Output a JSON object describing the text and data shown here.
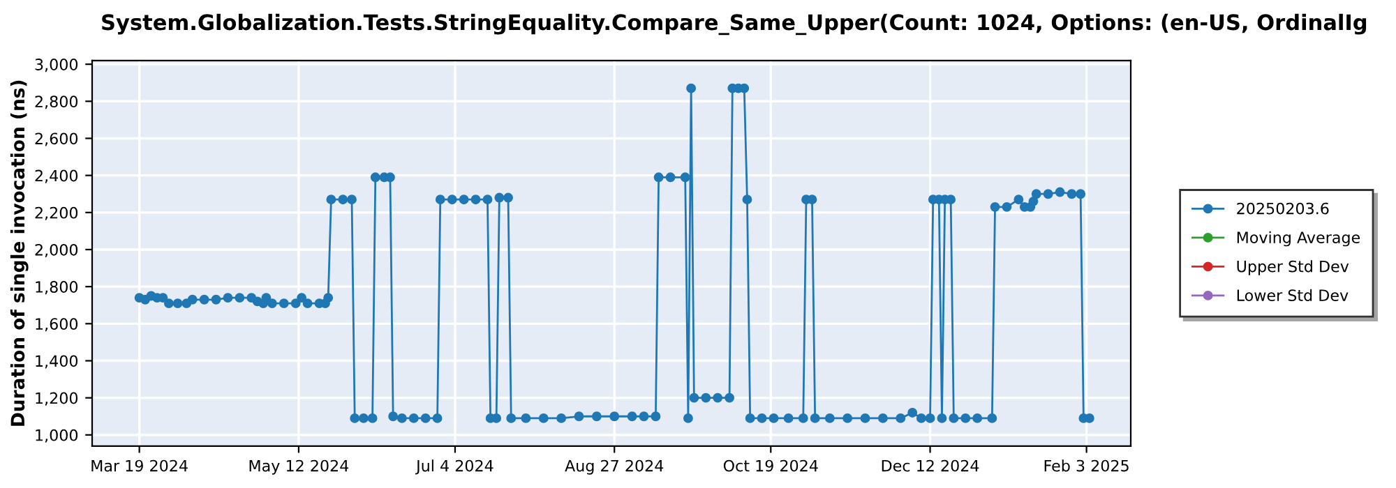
{
  "chart_data": {
    "type": "line",
    "title": "System.Globalization.Tests.StringEquality.Compare_Same_Upper(Count: 1024, Options: (en-US, OrdinalIg",
    "ylabel": "Duration of single invocation (ns)",
    "xlim": [
      "2024-03-03",
      "2025-02-18"
    ],
    "ylim": [
      940,
      3020
    ],
    "xticks": [
      {
        "value": "2024-03-19",
        "label": "Mar 19 2024"
      },
      {
        "value": "2024-05-12",
        "label": "May 12 2024"
      },
      {
        "value": "2024-07-04",
        "label": "Jul 4 2024"
      },
      {
        "value": "2024-08-27",
        "label": "Aug 27 2024"
      },
      {
        "value": "2024-10-19",
        "label": "Oct 19 2024"
      },
      {
        "value": "2024-12-12",
        "label": "Dec 12 2024"
      },
      {
        "value": "2025-02-03",
        "label": "Feb 3 2025"
      }
    ],
    "yticks": [
      {
        "value": 1000,
        "label": "1,000"
      },
      {
        "value": 1200,
        "label": "1,200"
      },
      {
        "value": 1400,
        "label": "1,400"
      },
      {
        "value": 1600,
        "label": "1,600"
      },
      {
        "value": 1800,
        "label": "1,800"
      },
      {
        "value": 2000,
        "label": "2,000"
      },
      {
        "value": 2200,
        "label": "2,200"
      },
      {
        "value": 2400,
        "label": "2,400"
      },
      {
        "value": 2600,
        "label": "2,600"
      },
      {
        "value": 2800,
        "label": "2,800"
      },
      {
        "value": 3000,
        "label": "3,000"
      }
    ],
    "grid": true,
    "legend": "right",
    "marker": "circle",
    "line_style": "solid",
    "series": [
      {
        "name": "20250203.6",
        "color": "#1f77b4",
        "x": [
          "2024-03-19",
          "2024-03-21",
          "2024-03-23",
          "2024-03-25",
          "2024-03-27",
          "2024-03-29",
          "2024-04-01",
          "2024-04-04",
          "2024-04-06",
          "2024-04-10",
          "2024-04-14",
          "2024-04-18",
          "2024-04-22",
          "2024-04-26",
          "2024-04-28",
          "2024-04-30",
          "2024-05-01",
          "2024-05-03",
          "2024-05-07",
          "2024-05-11",
          "2024-05-13",
          "2024-05-15",
          "2024-05-19",
          "2024-05-21",
          "2024-05-22",
          "2024-05-23",
          "2024-05-27",
          "2024-05-30",
          "2024-05-31",
          "2024-06-03",
          "2024-06-06",
          "2024-06-07",
          "2024-06-10",
          "2024-06-12",
          "2024-06-13",
          "2024-06-16",
          "2024-06-20",
          "2024-06-24",
          "2024-06-28",
          "2024-06-29",
          "2024-07-03",
          "2024-07-07",
          "2024-07-11",
          "2024-07-15",
          "2024-07-16",
          "2024-07-18",
          "2024-07-19",
          "2024-07-22",
          "2024-07-23",
          "2024-07-28",
          "2024-08-03",
          "2024-08-09",
          "2024-08-15",
          "2024-08-21",
          "2024-08-27",
          "2024-09-02",
          "2024-09-06",
          "2024-09-10",
          "2024-09-11",
          "2024-09-15",
          "2024-09-20",
          "2024-09-21",
          "2024-09-22",
          "2024-09-23",
          "2024-09-27",
          "2024-10-01",
          "2024-10-05",
          "2024-10-06",
          "2024-10-08",
          "2024-10-10",
          "2024-10-11",
          "2024-10-12",
          "2024-10-16",
          "2024-10-20",
          "2024-10-25",
          "2024-10-30",
          "2024-10-31",
          "2024-11-02",
          "2024-11-03",
          "2024-11-08",
          "2024-11-14",
          "2024-11-20",
          "2024-11-26",
          "2024-12-02",
          "2024-12-06",
          "2024-12-09",
          "2024-12-12",
          "2024-12-13",
          "2024-12-15",
          "2024-12-16",
          "2024-12-17",
          "2024-12-19",
          "2024-12-20",
          "2024-12-24",
          "2024-12-28",
          "2025-01-02",
          "2025-01-03",
          "2025-01-07",
          "2025-01-11",
          "2025-01-13",
          "2025-01-15",
          "2025-01-16",
          "2025-01-17",
          "2025-01-21",
          "2025-01-25",
          "2025-01-29",
          "2025-02-01",
          "2025-02-02",
          "2025-02-04"
        ],
        "values": [
          1740,
          1730,
          1750,
          1740,
          1740,
          1710,
          1710,
          1710,
          1730,
          1730,
          1730,
          1740,
          1740,
          1740,
          1720,
          1710,
          1740,
          1710,
          1710,
          1710,
          1740,
          1710,
          1710,
          1710,
          1740,
          2270,
          2270,
          2270,
          1090,
          1090,
          1090,
          2390,
          2390,
          2390,
          1100,
          1090,
          1090,
          1090,
          1090,
          2270,
          2270,
          2270,
          2270,
          2270,
          1090,
          1090,
          2280,
          2280,
          1090,
          1090,
          1090,
          1090,
          1100,
          1100,
          1100,
          1100,
          1100,
          1100,
          2390,
          2390,
          2390,
          1090,
          2870,
          1200,
          1200,
          1200,
          1200,
          2870,
          2870,
          2870,
          2270,
          1090,
          1090,
          1090,
          1090,
          1090,
          2270,
          2270,
          1090,
          1090,
          1090,
          1090,
          1090,
          1090,
          1120,
          1090,
          1090,
          2270,
          2270,
          1090,
          2270,
          2270,
          1090,
          1090,
          1090,
          1090,
          2230,
          2230,
          2270,
          2230,
          2230,
          2260,
          2300,
          2300,
          2310,
          2300,
          2300,
          1090,
          1090
        ]
      },
      {
        "name": "Moving Average",
        "color": "#2ca02c"
      },
      {
        "name": "Upper Std Dev",
        "color": "#d62728"
      },
      {
        "name": "Lower Std Dev",
        "color": "#9467bd"
      }
    ]
  }
}
